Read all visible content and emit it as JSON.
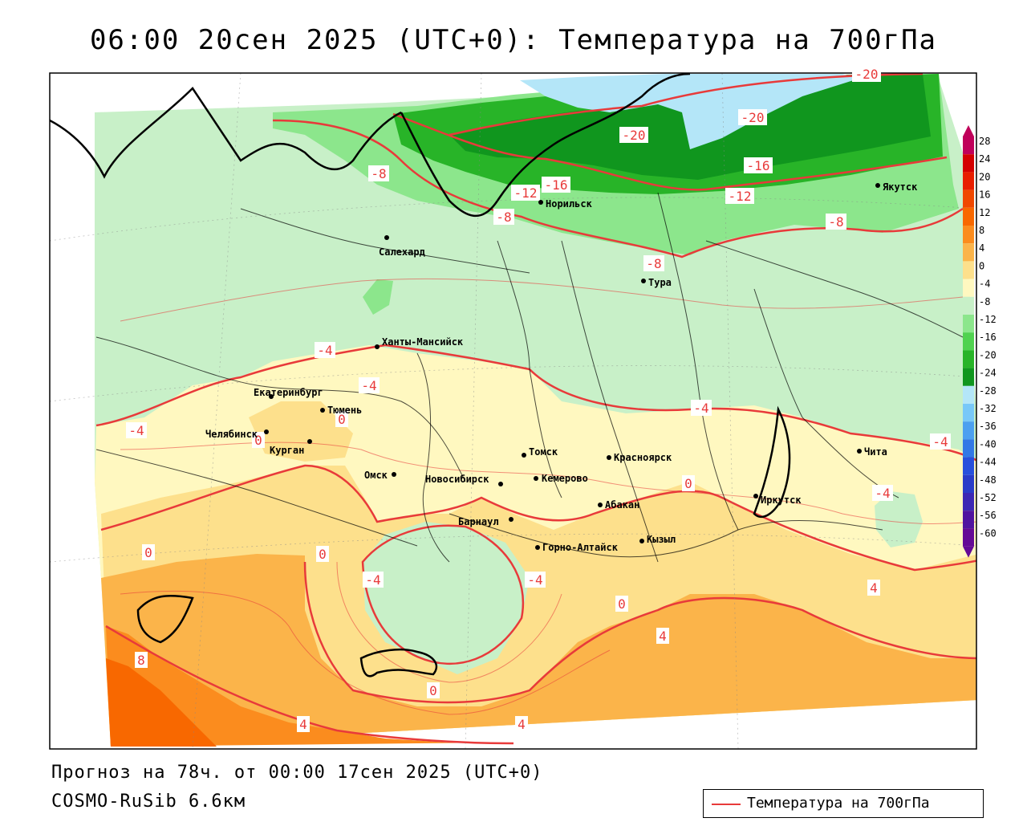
{
  "title": "06:00 20сен 2025 (UTC+0): Температура на 700гПа",
  "footer": {
    "forecast": "Прогноз на 78ч. от 00:00 17сен 2025 (UTC+0)",
    "model": "COSMO-RuSib 6.6км"
  },
  "legend": {
    "label": "Температура на 700гПа",
    "line_color": "#e83a3a"
  },
  "colorbar": {
    "labels": [
      "28",
      "24",
      "20",
      "16",
      "12",
      "8",
      "4",
      "0",
      "-4",
      "-8",
      "-12",
      "-16",
      "-20",
      "-24",
      "-28",
      "-32",
      "-36",
      "-40",
      "-44",
      "-48",
      "-52",
      "-56",
      "-60"
    ],
    "colors": [
      "#c0005a",
      "#d40000",
      "#e81e00",
      "#f04800",
      "#f86800",
      "#fb8c1e",
      "#fbb44a",
      "#fde08c",
      "#fff8c0",
      "#c8f0c8",
      "#8ce68c",
      "#50d250",
      "#28b428",
      "#10961e",
      "#b4e6f8",
      "#78c8f8",
      "#4ca0f0",
      "#3278e6",
      "#2850dc",
      "#2a3cc8",
      "#3c28b4",
      "#5014a0",
      "#640a96"
    ]
  },
  "cities": [
    {
      "name": "Салехард"
    },
    {
      "name": "Норильск"
    },
    {
      "name": "Якутск"
    },
    {
      "name": "Тура"
    },
    {
      "name": "Ханты-Мансийск"
    },
    {
      "name": "Екатеринбург"
    },
    {
      "name": "Тюмень"
    },
    {
      "name": "Челябинск"
    },
    {
      "name": "Курган"
    },
    {
      "name": "Омск"
    },
    {
      "name": "Новосибирск"
    },
    {
      "name": "Томск"
    },
    {
      "name": "Кемерово"
    },
    {
      "name": "Красноярск"
    },
    {
      "name": "Абакан"
    },
    {
      "name": "Барнаул"
    },
    {
      "name": "Горно-Алтайск"
    },
    {
      "name": "Кызыл"
    },
    {
      "name": "Иркутск"
    },
    {
      "name": "Чита"
    }
  ],
  "contour_labels": [
    "-20",
    "-20",
    "-20",
    "-16",
    "-16",
    "-12",
    "-12",
    "-8",
    "-8",
    "-8",
    "-8",
    "-4",
    "-4",
    "-4",
    "-4",
    "-4",
    "-4",
    "-4",
    "-4",
    "0",
    "0",
    "0",
    "0",
    "0",
    "0",
    "0",
    "4",
    "4",
    "4",
    "4",
    "8"
  ],
  "colors": {
    "green_light": "#c8f0c8",
    "green_mid": "#8ce68c",
    "green_dark": "#28b428",
    "green_darker": "#10961e",
    "blue_light": "#b4e6f8",
    "yellow_light": "#fff8c0",
    "yellow": "#fde08c",
    "orange_light": "#fbb44a",
    "orange": "#fb8c1e",
    "orange_dark": "#f86800",
    "contour": "#e83a3a"
  }
}
